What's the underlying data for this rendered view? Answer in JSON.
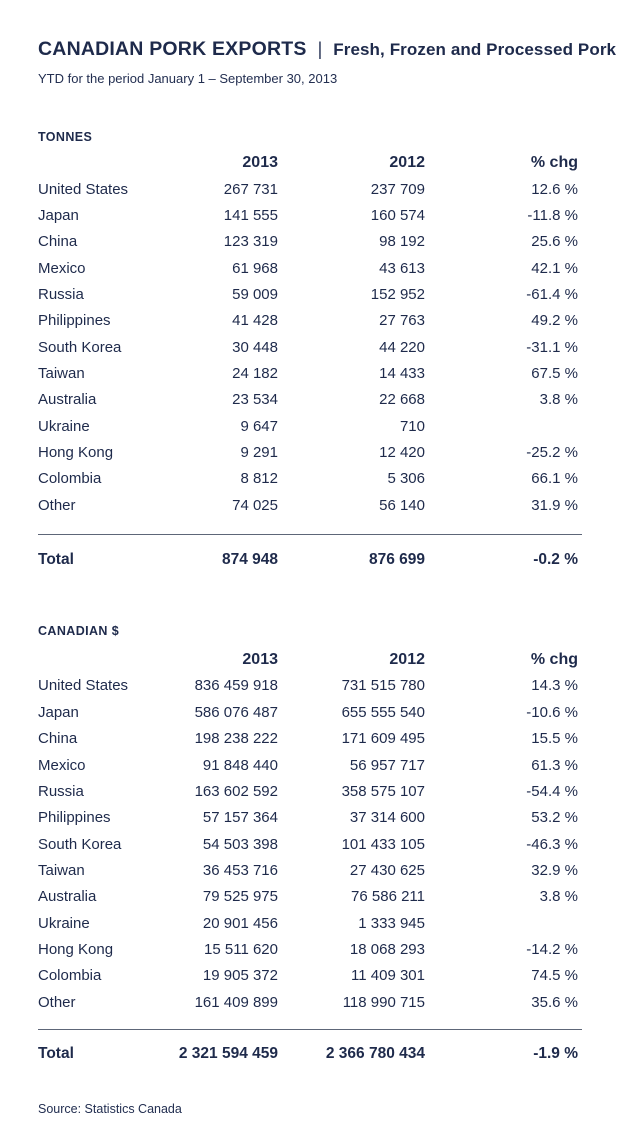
{
  "page": {
    "title": "CANADIAN PORK EXPORTS",
    "separator": "|",
    "subtitle": "Fresh, Frozen and Processed Pork",
    "period": "YTD for the period January 1 – September 30, 2013",
    "source": "Source: Statistics Canada"
  },
  "columns": {
    "col2013": "2013",
    "col2012": "2012",
    "colchg": "% chg"
  },
  "colors": {
    "text": "#1e2a4b",
    "rule": "#5d6678",
    "background": "#ffffff"
  },
  "tables": [
    {
      "label": "TONNES",
      "rows": [
        {
          "country": "United States",
          "v2013": "267 731",
          "v2012": "237 709",
          "chg": "12.6 %"
        },
        {
          "country": "Japan",
          "v2013": "141 555",
          "v2012": "160 574",
          "chg": "-11.8 %"
        },
        {
          "country": "China",
          "v2013": "123 319",
          "v2012": "98 192",
          "chg": "25.6 %"
        },
        {
          "country": "Mexico",
          "v2013": "61 968",
          "v2012": "43 613",
          "chg": "42.1 %"
        },
        {
          "country": "Russia",
          "v2013": "59 009",
          "v2012": "152 952",
          "chg": "-61.4 %"
        },
        {
          "country": "Philippines",
          "v2013": "41 428",
          "v2012": "27 763",
          "chg": "49.2 %"
        },
        {
          "country": "South Korea",
          "v2013": "30 448",
          "v2012": "44 220",
          "chg": "-31.1 %"
        },
        {
          "country": "Taiwan",
          "v2013": "24 182",
          "v2012": "14 433",
          "chg": "67.5 %"
        },
        {
          "country": "Australia",
          "v2013": "23 534",
          "v2012": "22 668",
          "chg": "3.8 %"
        },
        {
          "country": "Ukraine",
          "v2013": "9 647",
          "v2012": "710",
          "chg": ""
        },
        {
          "country": "Hong Kong",
          "v2013": "9 291",
          "v2012": "12 420",
          "chg": "-25.2 %"
        },
        {
          "country": "Colombia",
          "v2013": "8 812",
          "v2012": "5 306",
          "chg": "66.1 %"
        },
        {
          "country": "Other",
          "v2013": "74 025",
          "v2012": "56 140",
          "chg": "31.9 %"
        }
      ],
      "total": {
        "label": "Total",
        "v2013": "874 948",
        "v2012": "876 699",
        "chg": "-0.2 %"
      }
    },
    {
      "label": "CANADIAN $",
      "rows": [
        {
          "country": "United States",
          "v2013": "836 459 918",
          "v2012": "731 515 780",
          "chg": "14.3 %"
        },
        {
          "country": "Japan",
          "v2013": "586 076 487",
          "v2012": "655 555 540",
          "chg": "-10.6 %"
        },
        {
          "country": "China",
          "v2013": "198 238 222",
          "v2012": "171 609 495",
          "chg": "15.5 %"
        },
        {
          "country": "Mexico",
          "v2013": "91 848 440",
          "v2012": "56 957 717",
          "chg": "61.3 %"
        },
        {
          "country": "Russia",
          "v2013": "163 602 592",
          "v2012": "358 575 107",
          "chg": "-54.4 %"
        },
        {
          "country": "Philippines",
          "v2013": "57 157 364",
          "v2012": "37 314 600",
          "chg": "53.2 %"
        },
        {
          "country": "South Korea",
          "v2013": "54 503 398",
          "v2012": "101 433 105",
          "chg": "-46.3 %"
        },
        {
          "country": "Taiwan",
          "v2013": "36 453 716",
          "v2012": "27 430 625",
          "chg": "32.9 %"
        },
        {
          "country": "Australia",
          "v2013": "79 525 975",
          "v2012": "76 586 211",
          "chg": "3.8 %"
        },
        {
          "country": "Ukraine",
          "v2013": "20 901 456",
          "v2012": "1 333 945",
          "chg": ""
        },
        {
          "country": "Hong Kong",
          "v2013": "15 511 620",
          "v2012": "18 068 293",
          "chg": "-14.2 %"
        },
        {
          "country": "Colombia",
          "v2013": "19 905 372",
          "v2012": "11 409 301",
          "chg": "74.5 %"
        },
        {
          "country": "Other",
          "v2013": "161 409 899",
          "v2012": "118 990 715",
          "chg": "35.6 %"
        }
      ],
      "total": {
        "label": "Total",
        "v2013": "2 321 594 459",
        "v2012": "2 366 780 434",
        "chg": "-1.9 %"
      }
    }
  ]
}
